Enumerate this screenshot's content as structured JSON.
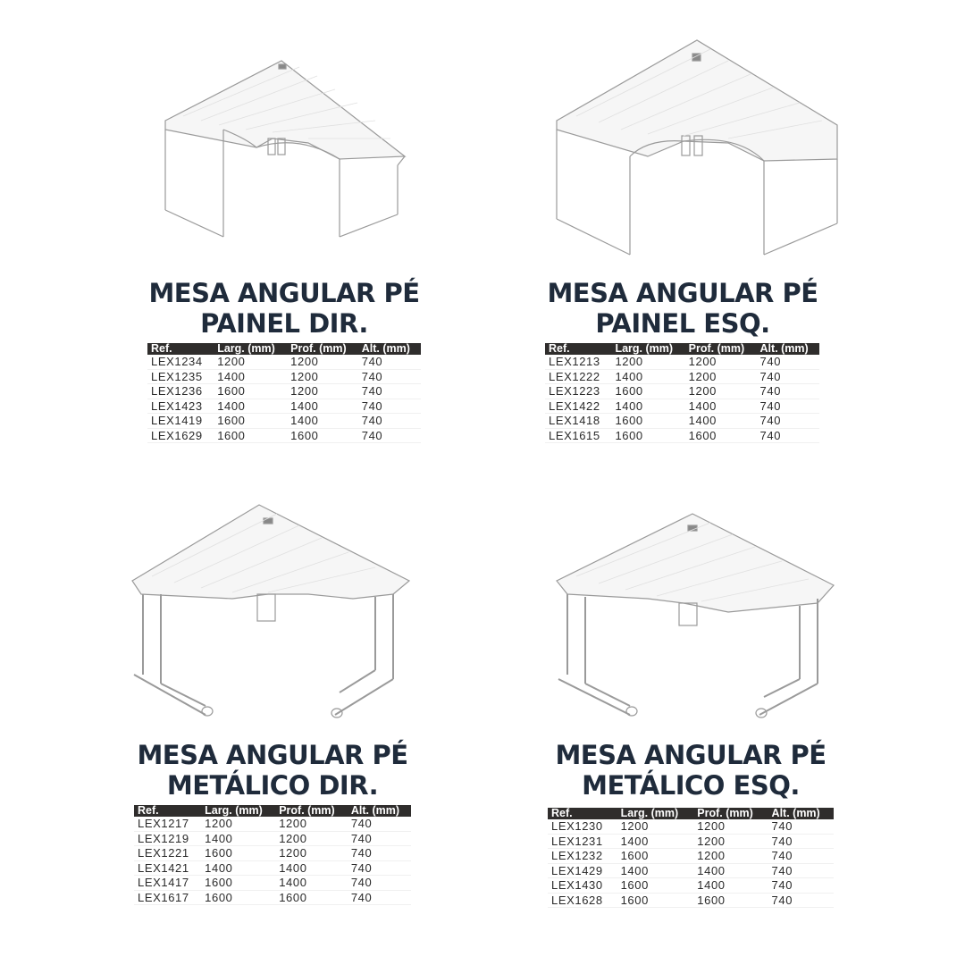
{
  "columns": [
    "Ref.",
    "Larg. (mm)",
    "Prof. (mm)",
    "Alt. (mm)"
  ],
  "products": [
    {
      "title_line1": "MESA ANGULAR PÉ",
      "title_line2": "PAINEL DIR.",
      "illustration": "corner-desk-panel-legs-right",
      "rows": [
        [
          "LEX1234",
          "1200",
          "1200",
          "740"
        ],
        [
          "LEX1235",
          "1400",
          "1200",
          "740"
        ],
        [
          "LEX1236",
          "1600",
          "1200",
          "740"
        ],
        [
          "LEX1423",
          "1400",
          "1400",
          "740"
        ],
        [
          "LEX1419",
          "1600",
          "1400",
          "740"
        ],
        [
          "LEX1629",
          "1600",
          "1600",
          "740"
        ]
      ]
    },
    {
      "title_line1": "MESA ANGULAR PÉ",
      "title_line2": "PAINEL ESQ.",
      "illustration": "corner-desk-panel-legs-left",
      "rows": [
        [
          "LEX1213",
          "1200",
          "1200",
          "740"
        ],
        [
          "LEX1222",
          "1400",
          "1200",
          "740"
        ],
        [
          "LEX1223",
          "1600",
          "1200",
          "740"
        ],
        [
          "LEX1422",
          "1400",
          "1400",
          "740"
        ],
        [
          "LEX1418",
          "1600",
          "1400",
          "740"
        ],
        [
          "LEX1615",
          "1600",
          "1600",
          "740"
        ]
      ]
    },
    {
      "title_line1": "MESA ANGULAR PÉ",
      "title_line2": "METÁLICO DIR.",
      "illustration": "corner-desk-metal-legs-right",
      "rows": [
        [
          "LEX1217",
          "1200",
          "1200",
          "740"
        ],
        [
          "LEX1219",
          "1400",
          "1200",
          "740"
        ],
        [
          "LEX1221",
          "1600",
          "1200",
          "740"
        ],
        [
          "LEX1421",
          "1400",
          "1400",
          "740"
        ],
        [
          "LEX1417",
          "1600",
          "1400",
          "740"
        ],
        [
          "LEX1617",
          "1600",
          "1600",
          "740"
        ]
      ]
    },
    {
      "title_line1": "MESA ANGULAR PÉ",
      "title_line2": "METÁLICO ESQ.",
      "illustration": "corner-desk-metal-legs-left",
      "rows": [
        [
          "LEX1230",
          "1200",
          "1200",
          "740"
        ],
        [
          "LEX1231",
          "1400",
          "1200",
          "740"
        ],
        [
          "LEX1232",
          "1600",
          "1200",
          "740"
        ],
        [
          "LEX1429",
          "1400",
          "1400",
          "740"
        ],
        [
          "LEX1430",
          "1600",
          "1400",
          "740"
        ],
        [
          "LEX1628",
          "1600",
          "1600",
          "740"
        ]
      ]
    }
  ]
}
